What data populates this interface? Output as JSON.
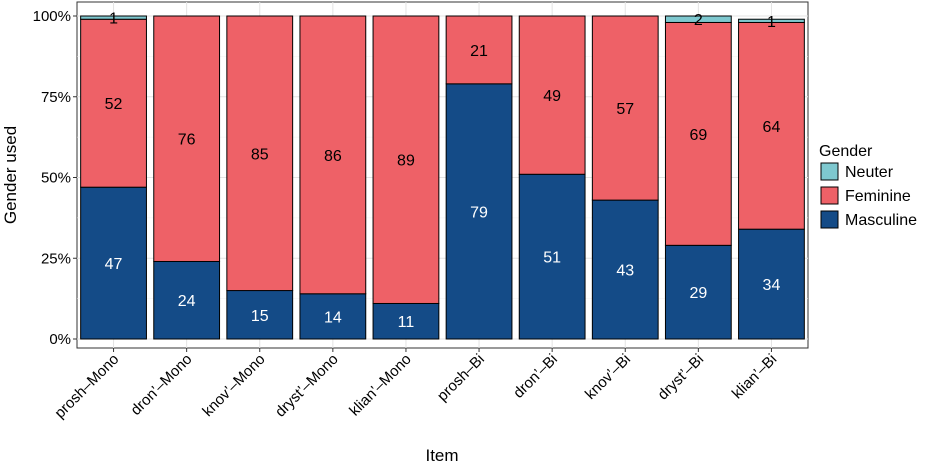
{
  "chart_data": {
    "type": "bar",
    "stacked": true,
    "percent": true,
    "xlabel": "Item",
    "ylabel": "Gender used",
    "yticks": [
      "0%",
      "25%",
      "50%",
      "75%",
      "100%"
    ],
    "ylim": [
      0,
      100
    ],
    "grid": true,
    "legend_position": "right",
    "legend_title": "Gender",
    "legend_order": [
      "Neuter",
      "Feminine",
      "Masculine"
    ],
    "categories": [
      "prosh–Mono",
      "dron’–Mono",
      "knov’–Mono",
      "dryst’–Mono",
      "klian’–Mono",
      "prosh–Bi",
      "dron’–Bi",
      "knov’–Bi",
      "dryst’–Bi",
      "klian’–Bi"
    ],
    "series": [
      {
        "name": "Masculine",
        "color": "#144B87",
        "label_color": "#ffffff",
        "values": [
          47,
          24,
          15,
          14,
          11,
          79,
          51,
          43,
          29,
          34
        ]
      },
      {
        "name": "Feminine",
        "color": "#EE6167",
        "label_color": "#000000",
        "values": [
          52,
          76,
          85,
          86,
          89,
          21,
          49,
          57,
          69,
          64
        ]
      },
      {
        "name": "Neuter",
        "color": "#7EC8CF",
        "label_color": "#000000",
        "values": [
          1,
          0,
          0,
          0,
          0,
          0,
          0,
          0,
          2,
          1
        ]
      }
    ]
  }
}
